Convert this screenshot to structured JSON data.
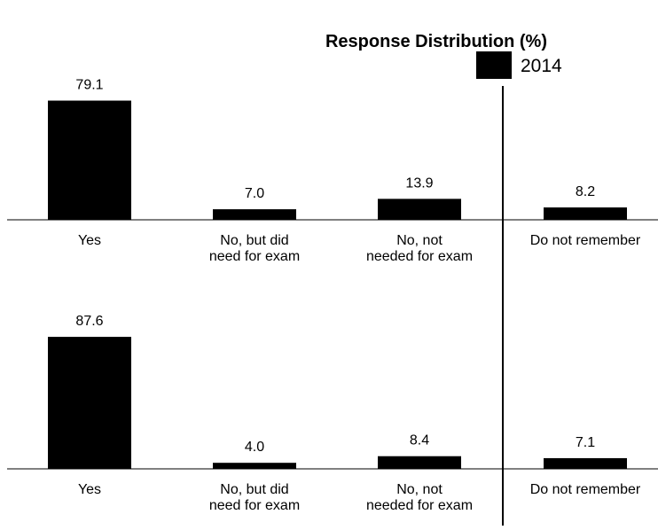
{
  "chart_data": [
    {
      "type": "bar",
      "title": "Response Distribution (%)",
      "categories": [
        [
          "Yes"
        ],
        [
          "No, but did",
          "need for exam"
        ],
        [
          "No, not",
          "needed for exam"
        ],
        [
          "Do not remember"
        ]
      ],
      "series": [
        {
          "name": "2014",
          "values": [
            79.1,
            7.0,
            13.9,
            8.2
          ],
          "labels": [
            "79.1",
            "7.0",
            "13.9",
            "8.2"
          ],
          "color": "#000000"
        }
      ],
      "ylim": [
        0,
        100
      ],
      "grid": false,
      "legend": "top-right"
    },
    {
      "type": "bar",
      "categories": [
        [
          "Yes"
        ],
        [
          "No, but did",
          "need for exam"
        ],
        [
          "No, not",
          "needed for exam"
        ],
        [
          "Do not remember"
        ]
      ],
      "series": [
        {
          "values": [
            87.6,
            4.0,
            8.4,
            7.1
          ],
          "labels": [
            "87.6",
            "4.0",
            "8.4",
            "7.1"
          ],
          "color": "#000000"
        }
      ],
      "ylim": [
        0,
        100
      ],
      "grid": false
    }
  ]
}
